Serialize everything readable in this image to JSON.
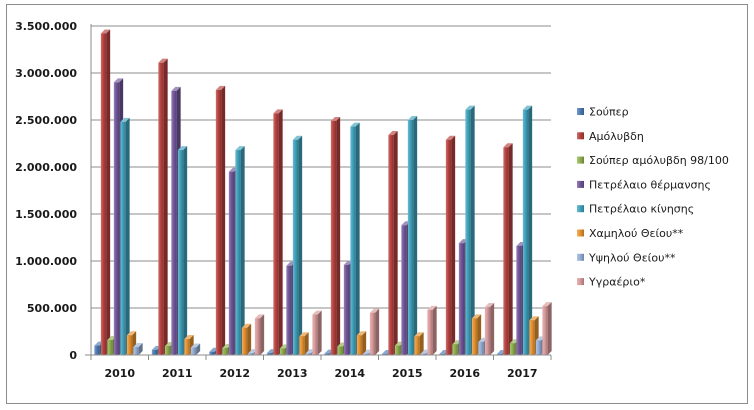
{
  "chart_data": {
    "type": "bar",
    "categories": [
      "2010",
      "2011",
      "2012",
      "2013",
      "2014",
      "2015",
      "2016",
      "2017"
    ],
    "ylim": [
      0,
      3500000
    ],
    "y_ticks": [
      "0",
      "500.000",
      "1.000.000",
      "1.500.000",
      "2.000.000",
      "2.500.000",
      "3.000.000",
      "3.500.000"
    ],
    "grid": true,
    "legend_position": "right",
    "series": [
      {
        "name": "Σούπερ",
        "color": "#4a7ab5",
        "values": [
          100000,
          55000,
          35000,
          20000,
          15000,
          10000,
          10000,
          10000
        ]
      },
      {
        "name": "Αμόλυβδη",
        "color": "#b7413e",
        "values": [
          3420000,
          3110000,
          2820000,
          2570000,
          2490000,
          2340000,
          2290000,
          2210000
        ]
      },
      {
        "name": "Σούπερ αμόλυβδη 98/100",
        "color": "#8fb04c",
        "values": [
          160000,
          95000,
          75000,
          70000,
          90000,
          100000,
          115000,
          125000
        ]
      },
      {
        "name": "Πετρέλαιο θέρμανσης",
        "color": "#71559a",
        "values": [
          2900000,
          2810000,
          1950000,
          950000,
          960000,
          1380000,
          1190000,
          1160000
        ]
      },
      {
        "name": "Πετρέλαιο κίνησης",
        "color": "#3ea2bd",
        "values": [
          2480000,
          2180000,
          2180000,
          2290000,
          2430000,
          2500000,
          2610000,
          2610000
        ]
      },
      {
        "name": "Χαμηλού Θείου**",
        "color": "#e8922e",
        "values": [
          210000,
          170000,
          290000,
          200000,
          210000,
          200000,
          390000,
          370000
        ]
      },
      {
        "name": "Υψηλού Θείου**",
        "color": "#95afd8",
        "values": [
          85000,
          80000,
          20000,
          20000,
          15000,
          15000,
          140000,
          155000
        ]
      },
      {
        "name": "Υγραέριο*",
        "color": "#d9999a",
        "values": [
          0,
          0,
          390000,
          430000,
          450000,
          480000,
          510000,
          520000
        ]
      }
    ]
  }
}
